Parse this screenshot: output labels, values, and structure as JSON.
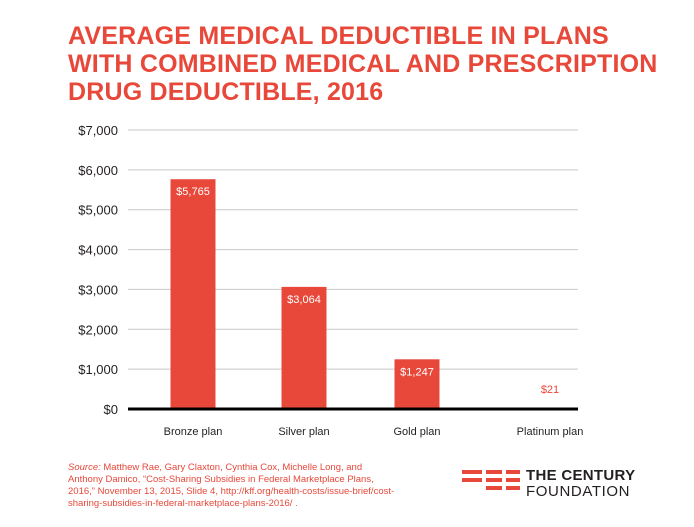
{
  "colors": {
    "accent": "#e8483a",
    "text": "#231f20",
    "grid": "#c9c9c9",
    "baseline": "#000000",
    "bar_label_inside": "#ffffff"
  },
  "chart_data": {
    "type": "bar",
    "title": "AVERAGE MEDICAL DEDUCTIBLE IN PLANS WITH COMBINED MEDICAL AND PRESCRIPTION DRUG DEDUCTIBLE, 2016",
    "xlabel": "",
    "ylabel": "",
    "categories": [
      "Bronze plan",
      "Silver plan",
      "Gold plan",
      "Platinum plan"
    ],
    "values": [
      5765,
      3064,
      1247,
      21
    ],
    "value_labels": [
      "$5,765",
      "$3,064",
      "$1,247",
      "$21"
    ],
    "ylim": [
      0,
      7000
    ],
    "yticks": [
      0,
      1000,
      2000,
      3000,
      4000,
      5000,
      6000,
      7000
    ],
    "ytick_labels": [
      "$0",
      "$1,000",
      "$2,000",
      "$3,000",
      "$4,000",
      "$5,000",
      "$6,000",
      "$7,000"
    ],
    "grid": true,
    "legend": "none"
  },
  "source": {
    "prefix": "Source:",
    "text": " Matthew Rae, Gary Claxton, Cynthia Cox, Michelle Long, and Anthony Damico, “Cost-Sharing Subsidies in Federal Marketplace Plans, 2016,” November 13, 2015, Slide 4, http://kff.org/health-costs/issue-brief/cost-sharing-subsidies-in-federal-marketplace-plans-2016/ ."
  },
  "logo": {
    "icon": "century-foundation-logo-icon",
    "line1": "THE CENTURY",
    "line2": "FOUNDATION"
  }
}
